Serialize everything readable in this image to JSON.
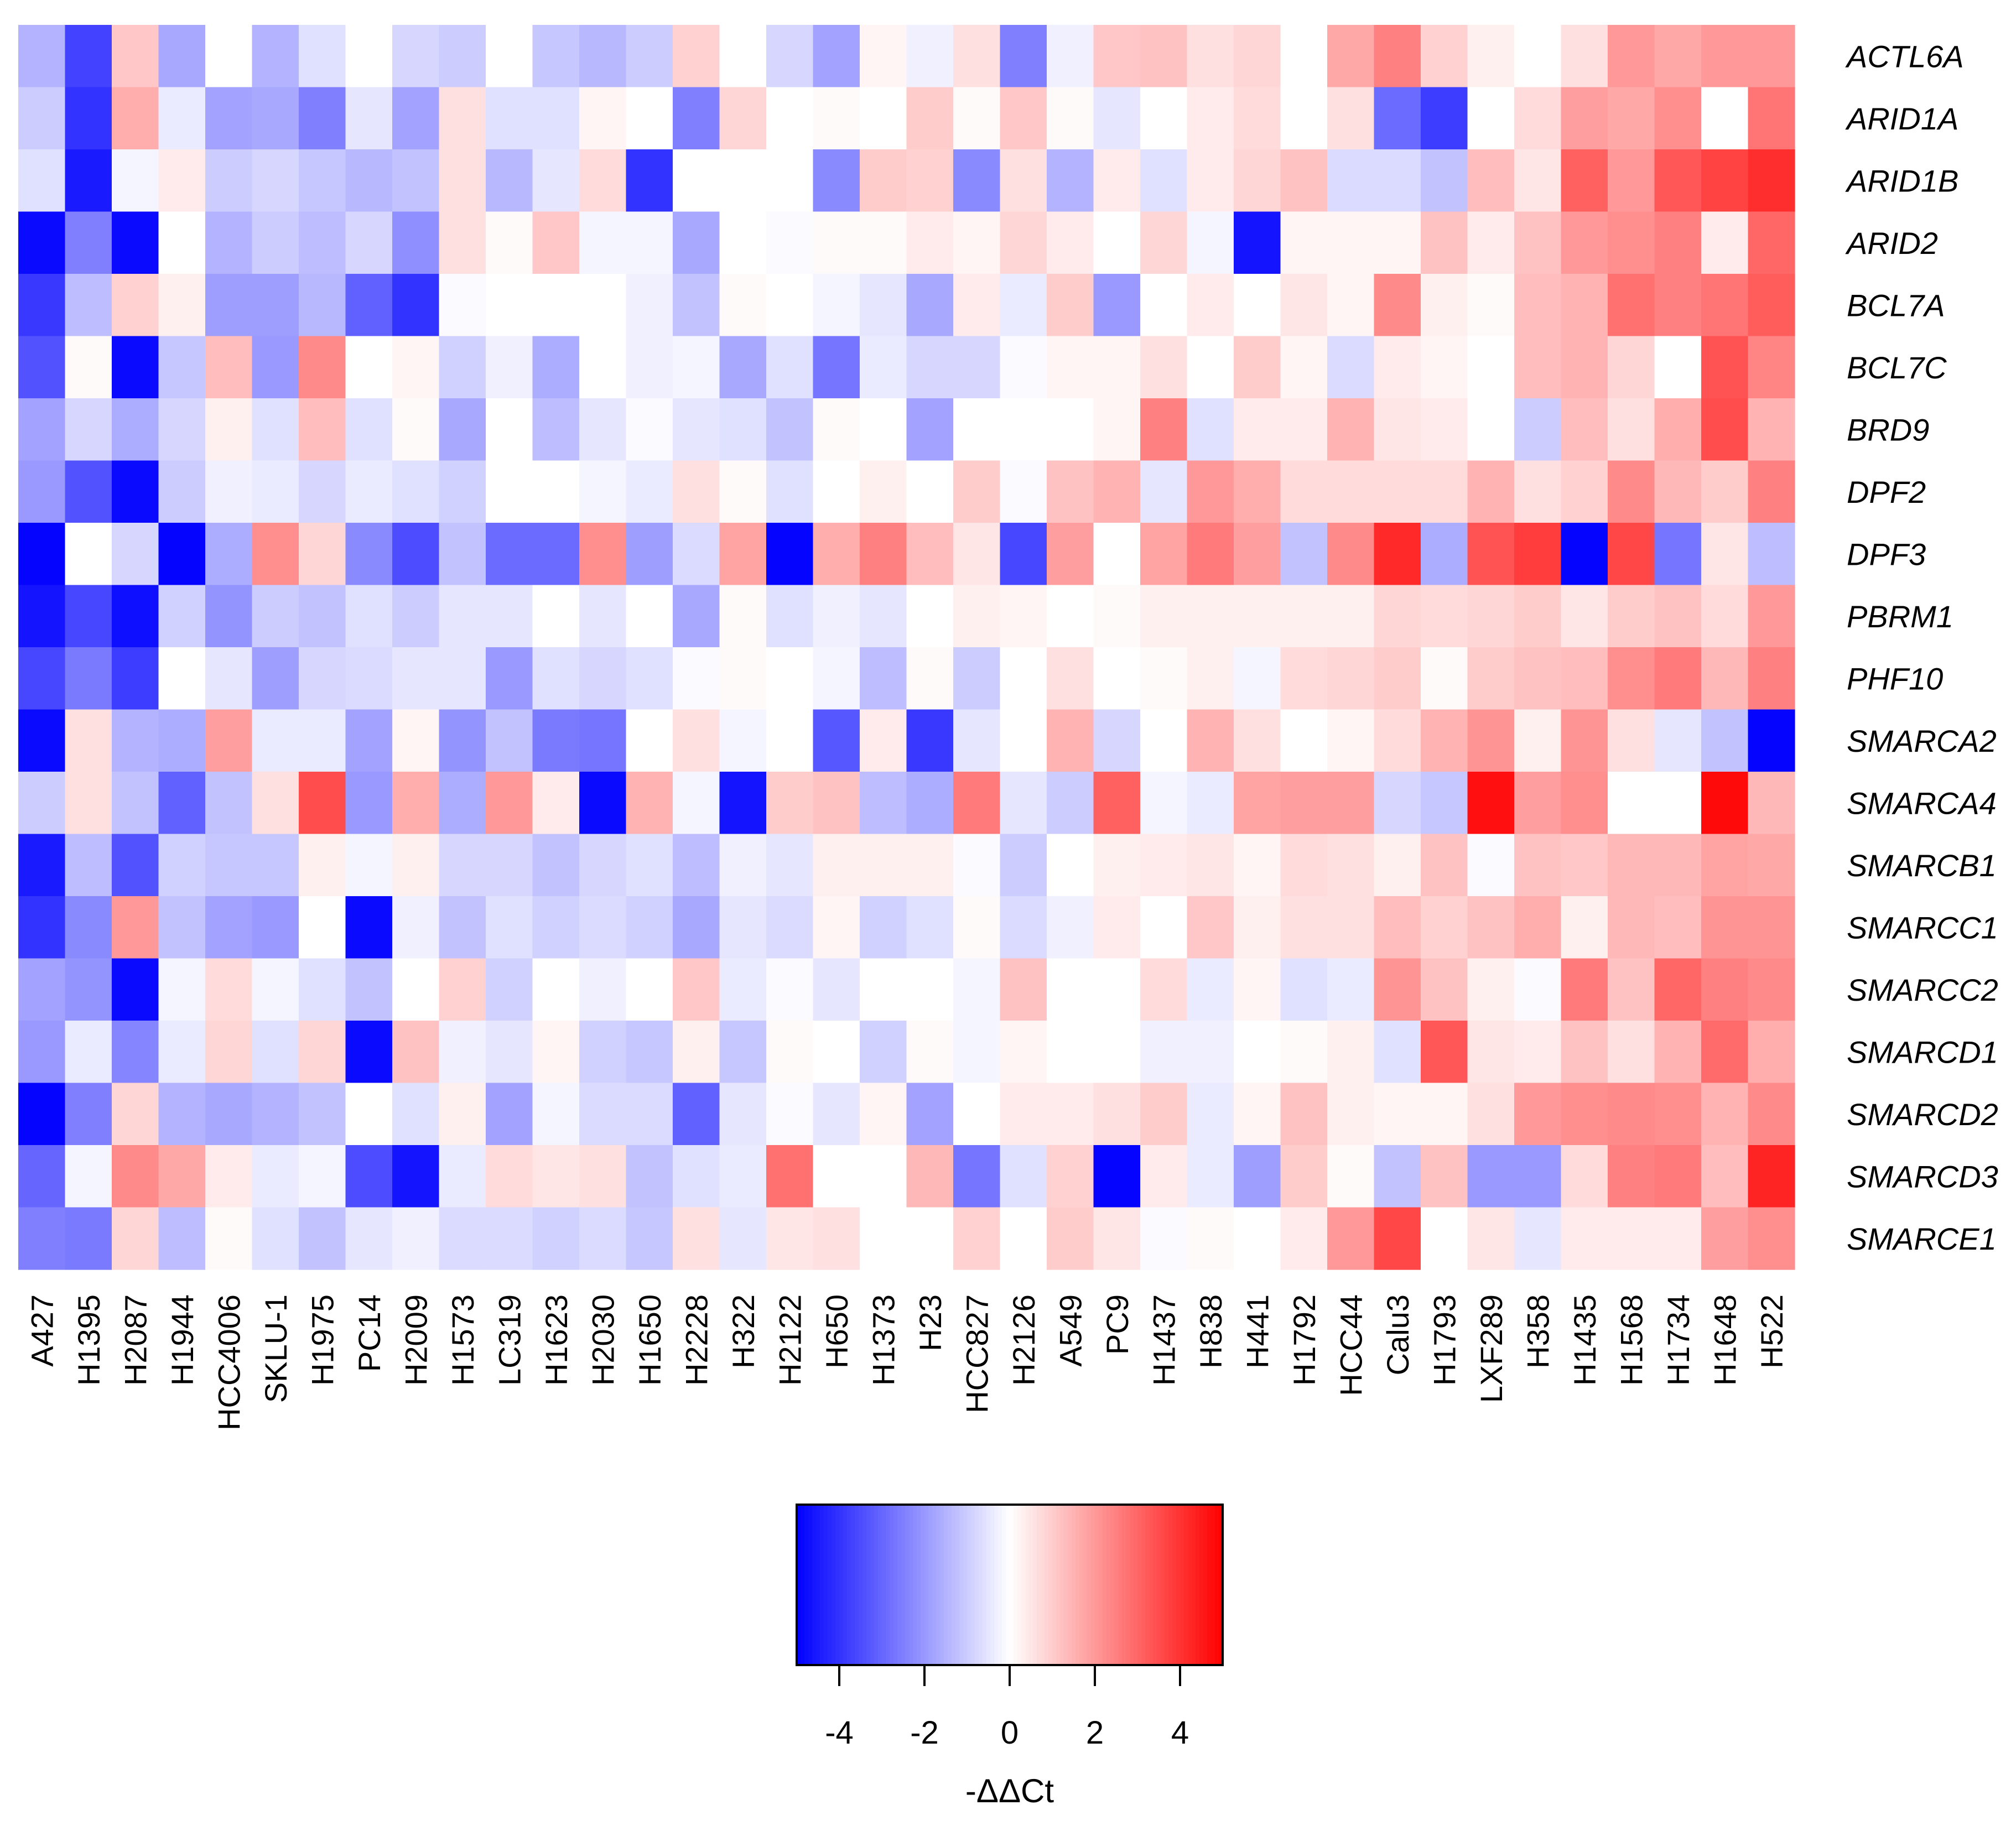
{
  "chart_data": {
    "type": "heatmap",
    "title": "",
    "columns": [
      "A427",
      "H1395",
      "H2087",
      "H1944",
      "HCC4006",
      "SKLU-1",
      "H1975",
      "PC14",
      "H2009",
      "H1573",
      "LC319",
      "H1623",
      "H2030",
      "H1650",
      "H2228",
      "H322",
      "H2122",
      "H650",
      "H1373",
      "H23",
      "HCC827",
      "H2126",
      "A549",
      "PC9",
      "H1437",
      "H838",
      "H441",
      "H1792",
      "HCC44",
      "Calu3",
      "H1793",
      "LXF289",
      "H358",
      "H1435",
      "H1568",
      "H1734",
      "H1648",
      "H522"
    ],
    "rows": [
      "ACTL6A",
      "ARID1A",
      "ARID1B",
      "ARID2",
      "BCL7A",
      "BCL7C",
      "BRD9",
      "DPF2",
      "DPF3",
      "PBRM1",
      "PHF10",
      "SMARCA2",
      "SMARCA4",
      "SMARCB1",
      "SMARCC1",
      "SMARCC2",
      "SMARCD1",
      "SMARCD2",
      "SMARCD3",
      "SMARCE1"
    ],
    "values": [
      [
        -1.5,
        -3.7,
        1.1,
        -1.7,
        0,
        -1.5,
        -0.6,
        0,
        -0.8,
        -1,
        0,
        -1.1,
        -1.4,
        -1,
        0.9,
        0,
        -0.8,
        -1.8,
        0.2,
        -0.3,
        0.6,
        -2.5,
        -0.3,
        1.1,
        1.2,
        0.6,
        0.8,
        0,
        1.7,
        2.5,
        0.9,
        0.3,
        0,
        0.6,
        2,
        1.7,
        2,
        2
      ],
      [
        -1,
        -4,
        1.6,
        -0.4,
        -1.8,
        -1.7,
        -2.5,
        -0.5,
        -1.8,
        0.6,
        -0.6,
        -0.6,
        0.2,
        0,
        -2.5,
        0.8,
        0,
        0.1,
        0,
        1,
        0.1,
        1.1,
        0.1,
        -0.5,
        0,
        0.4,
        0.7,
        0,
        0.6,
        -2.9,
        -3.8,
        0,
        0.7,
        1.9,
        1.7,
        2.2,
        0,
        2.7
      ],
      [
        -0.6,
        -4.5,
        -0.2,
        0.4,
        -1,
        -0.8,
        -1.1,
        -1.4,
        -1.2,
        0.6,
        -1.4,
        -0.5,
        0.7,
        -4,
        0,
        0,
        0,
        -2.3,
        1,
        0.9,
        -2.3,
        0.6,
        -1.5,
        0.4,
        -0.6,
        0.4,
        0.8,
        1.2,
        -0.7,
        -0.7,
        -1.2,
        1.3,
        0.5,
        3.1,
        2,
        3.3,
        3.7,
        4.1
      ],
      [
        -4.8,
        -2.5,
        -4.8,
        0,
        -1.5,
        -1,
        -1.3,
        -0.8,
        -2.2,
        0.6,
        0.1,
        1.1,
        -0.2,
        -0.2,
        -1.7,
        0,
        -0.1,
        0.1,
        0.1,
        0.4,
        0.2,
        0.8,
        0.4,
        0,
        0.8,
        -0.2,
        -4.6,
        0.2,
        0.2,
        0.2,
        1.2,
        0.4,
        1.2,
        2,
        2.2,
        2.5,
        0.4,
        3
      ],
      [
        -3.9,
        -1.3,
        0.9,
        0.3,
        -1.9,
        -1.9,
        -1.4,
        -3.1,
        -4,
        -0.1,
        0,
        0,
        0,
        -0.3,
        -1.2,
        0.1,
        0,
        -0.2,
        -0.5,
        -1.7,
        0.4,
        -0.4,
        1,
        -2,
        0,
        0.4,
        0,
        0.5,
        0.2,
        2.3,
        0.3,
        0.1,
        1.3,
        1.5,
        2.8,
        2.5,
        2.7,
        3.2
      ],
      [
        -3.4,
        0.1,
        -4.8,
        -1.1,
        1.3,
        -2,
        2.3,
        0,
        0.2,
        -0.9,
        -0.3,
        -1.6,
        0,
        -0.3,
        -0.2,
        -1.7,
        -0.6,
        -2.7,
        -0.4,
        -0.8,
        -0.8,
        -0.1,
        0.2,
        0.2,
        0.6,
        0,
        1,
        0.2,
        -0.7,
        0.4,
        0.2,
        0,
        1.3,
        1.5,
        0.8,
        0,
        3.4,
        2.4
      ],
      [
        -1.8,
        -0.8,
        -1.6,
        -0.8,
        0.3,
        -0.6,
        1.3,
        -0.6,
        0.1,
        -1.7,
        0,
        -1.3,
        -0.5,
        -0.1,
        -0.5,
        -0.6,
        -1.2,
        0.1,
        0,
        -1.8,
        0,
        0,
        0,
        0.2,
        2.5,
        -0.6,
        0.4,
        0.4,
        1.5,
        0.5,
        0.4,
        0,
        -1,
        1.3,
        0.6,
        1.6,
        3.5,
        1.5
      ],
      [
        -2,
        -3.4,
        -4.8,
        -1,
        -0.3,
        -0.4,
        -0.8,
        -0.4,
        -0.6,
        -0.9,
        0,
        0,
        -0.2,
        -0.4,
        0.6,
        0.1,
        -0.6,
        0,
        0.3,
        0,
        1,
        -0.1,
        1.2,
        1.5,
        -0.5,
        2,
        1.6,
        0.7,
        0.7,
        0.7,
        0.7,
        1.5,
        0.6,
        0.9,
        2.3,
        1.4,
        1,
        2.5
      ],
      [
        -4.9,
        0,
        -0.8,
        -4.9,
        -1.6,
        2.2,
        0.8,
        -2.3,
        -3.5,
        -1.2,
        -2.9,
        -2.9,
        2.2,
        -1.9,
        -0.7,
        1.8,
        -4.9,
        1.6,
        2.5,
        1.3,
        0.5,
        -3.6,
        1.9,
        0,
        1.8,
        2.6,
        1.9,
        -1.2,
        2.3,
        4.2,
        -1.6,
        3.4,
        3.8,
        -4.9,
        3.6,
        -2.7,
        0.5,
        -1.3
      ],
      [
        -4.6,
        -3.6,
        -4.7,
        -0.9,
        -2.1,
        -1,
        -1.2,
        -0.6,
        -1,
        -0.5,
        -0.5,
        0,
        -0.5,
        0,
        -1.7,
        0.1,
        -0.6,
        -0.3,
        -0.5,
        0,
        0.3,
        0.2,
        0,
        0.1,
        0.3,
        0.3,
        0.3,
        0.3,
        0.3,
        0.8,
        0.7,
        0.8,
        1,
        0.5,
        1,
        1.2,
        0.7,
        2
      ],
      [
        -3.6,
        -2.6,
        -3.8,
        0,
        -0.5,
        -1.9,
        -0.8,
        -0.7,
        -0.5,
        -0.5,
        -2,
        -0.6,
        -0.8,
        -0.6,
        -0.1,
        0.1,
        0,
        -0.2,
        -1.3,
        0.1,
        -1,
        0,
        0.6,
        0,
        0.1,
        0.3,
        -0.2,
        0.7,
        0.8,
        1,
        0.1,
        1,
        1.2,
        1.3,
        2.2,
        2.6,
        1.4,
        2.5
      ],
      [
        -4.8,
        0.6,
        -1.5,
        -1.6,
        1.9,
        -0.4,
        -0.4,
        -1.8,
        0.2,
        -2.1,
        -1.2,
        -2.6,
        -2.7,
        0,
        0.6,
        -0.2,
        0,
        -3.3,
        0.4,
        -3.9,
        -0.5,
        0,
        1.5,
        -0.8,
        0,
        1.5,
        0.6,
        0,
        0.2,
        0.7,
        1.5,
        2.1,
        0.3,
        2.1,
        0.6,
        -0.5,
        -1.2,
        -4.9
      ],
      [
        -1,
        0.6,
        -1.2,
        -3.1,
        -1.2,
        0.6,
        3.5,
        -2,
        1.6,
        -1.6,
        2,
        0.4,
        -4.8,
        1.5,
        -0.2,
        -4.6,
        1,
        1.2,
        -1.3,
        -1.6,
        2.6,
        -0.5,
        -1,
        3.1,
        -0.2,
        -0.4,
        1.8,
        1.9,
        1.9,
        -0.8,
        -1.1,
        4.7,
        1.9,
        2.2,
        0,
        0,
        4.8,
        1.4
      ],
      [
        -4.5,
        -1.3,
        -3.4,
        -0.9,
        -1.1,
        -1.1,
        0.3,
        -0.2,
        0.3,
        -0.8,
        -0.8,
        -1.2,
        -0.8,
        -0.6,
        -1.3,
        -0.3,
        -0.5,
        0.3,
        0.3,
        0.3,
        -0.1,
        -1,
        0,
        0.3,
        0.4,
        0.5,
        0.2,
        0.7,
        0.6,
        0.3,
        1.2,
        -0.1,
        1.2,
        1.1,
        1.4,
        1.4,
        1.8,
        1.7
      ],
      [
        -4,
        -2.3,
        2,
        -1.2,
        -1.8,
        -2,
        0,
        -4.8,
        -0.3,
        -1.2,
        -0.6,
        -0.9,
        -0.7,
        -0.9,
        -1.7,
        -0.5,
        -0.7,
        0.2,
        -0.9,
        -0.6,
        0.1,
        -0.7,
        -0.3,
        0.4,
        0,
        1.1,
        0.3,
        0.6,
        0.6,
        1.3,
        0.9,
        1.2,
        1.6,
        0.3,
        1.4,
        1.3,
        2.1,
        2.1
      ],
      [
        -1.8,
        -2.1,
        -4.8,
        -0.2,
        0.7,
        -0.2,
        -0.6,
        -1.2,
        0,
        0.9,
        -0.9,
        0,
        -0.3,
        0,
        1.1,
        -0.4,
        -0.1,
        -0.5,
        0,
        0,
        -0.2,
        1.2,
        0,
        0,
        0.7,
        -0.4,
        0.2,
        -0.6,
        -0.4,
        2.1,
        1.2,
        0.3,
        -0.1,
        2.6,
        1.2,
        3,
        2.5,
        2.3
      ],
      [
        -2,
        -0.4,
        -2.4,
        -0.4,
        0.8,
        -0.6,
        0.8,
        -4.8,
        1.2,
        -0.3,
        -0.5,
        0.2,
        -0.9,
        -1.1,
        0.3,
        -1.1,
        0.1,
        0,
        -0.9,
        0.1,
        -0.2,
        0.2,
        0,
        0,
        -0.3,
        -0.3,
        0,
        0.1,
        0.3,
        -0.6,
        3.3,
        0.5,
        0.4,
        1.2,
        0.6,
        1.5,
        2.9,
        1.6
      ],
      [
        -4.9,
        -2.5,
        0.8,
        -1.5,
        -1.7,
        -1.5,
        -1.2,
        0,
        -0.6,
        0.3,
        -1.8,
        -0.2,
        -0.7,
        -0.7,
        -3.1,
        -0.5,
        -0.1,
        -0.5,
        0.2,
        -1.8,
        0,
        0.4,
        0.4,
        0.6,
        1,
        -0.4,
        0.2,
        1.2,
        0.3,
        0.2,
        0.2,
        0.6,
        2,
        2.2,
        2.3,
        2.2,
        1.5,
        2.3
      ],
      [
        -3,
        -0.2,
        2.3,
        1.7,
        0.4,
        -0.4,
        -0.2,
        -3.5,
        -4.6,
        -0.4,
        0.7,
        0.5,
        0.6,
        -1.2,
        -0.6,
        -0.4,
        2.8,
        0,
        0,
        1.4,
        -2.7,
        -0.6,
        0.9,
        -4.9,
        0.4,
        -0.4,
        -1.9,
        1,
        0.1,
        -1.2,
        1.2,
        -2,
        -2,
        0.7,
        2.5,
        2.6,
        1.3,
        4.3
      ],
      [
        -2.5,
        -2.6,
        0.8,
        -1.3,
        0.1,
        -0.6,
        -1.2,
        -0.5,
        -0.3,
        -0.7,
        -0.7,
        -0.9,
        -0.7,
        -1.1,
        0.6,
        -0.5,
        0.5,
        0.6,
        0,
        0,
        0.9,
        0,
        1,
        0.5,
        -0.1,
        0.1,
        0,
        0.4,
        2,
        3.6,
        0,
        0.5,
        -0.5,
        0.4,
        0.4,
        0.4,
        1.9,
        2.2
      ]
    ],
    "colorbar": {
      "title": "-ΔΔCt",
      "range": [
        -5,
        5
      ],
      "ticks": [
        -4,
        -2,
        0,
        2,
        4
      ],
      "tick_labels": [
        "-4",
        "-2",
        "0",
        "2",
        "4"
      ],
      "low_color": "#0000ff",
      "mid_color": "#ffffff",
      "high_color": "#ff0000"
    }
  }
}
